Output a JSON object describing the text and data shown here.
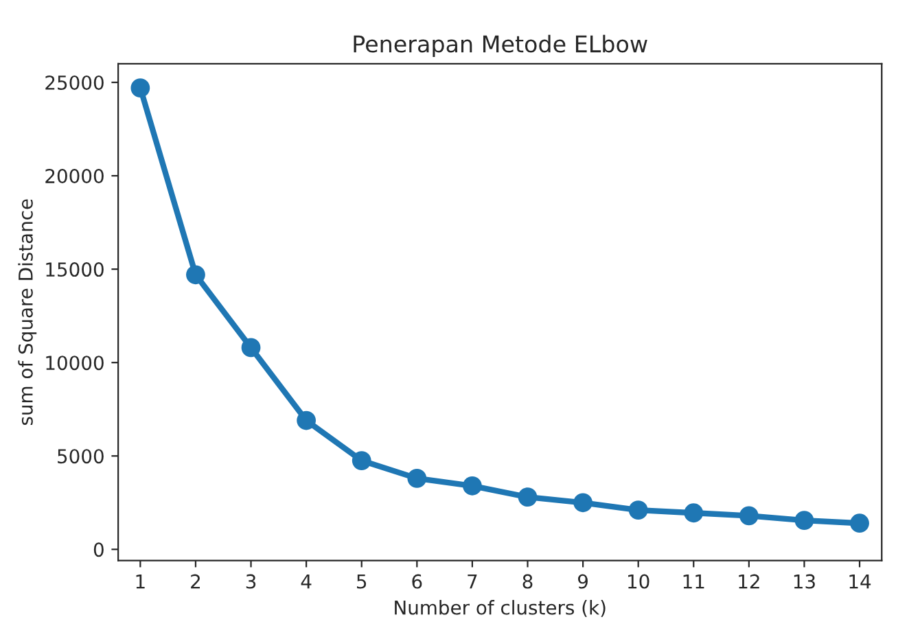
{
  "chart_data": {
    "type": "line",
    "title": "Penerapan Metode ELbow",
    "xlabel": "Number of clusters (k)",
    "ylabel": "sum of Square Distance",
    "categories": [
      "1",
      "2",
      "3",
      "4",
      "5",
      "6",
      "7",
      "8",
      "9",
      "10",
      "11",
      "12",
      "13",
      "14"
    ],
    "series": [
      {
        "color": "#1f77b4",
        "values": [
          24700,
          14700,
          10800,
          6900,
          4750,
          3800,
          3400,
          2800,
          2500,
          2100,
          1950,
          1800,
          1550,
          1400
        ]
      }
    ],
    "ylim": [
      -600,
      26000
    ],
    "yticks": [
      0,
      5000,
      10000,
      15000,
      20000,
      25000
    ],
    "marker": "circle",
    "line_style": "solid",
    "grid": false,
    "legend": false
  }
}
